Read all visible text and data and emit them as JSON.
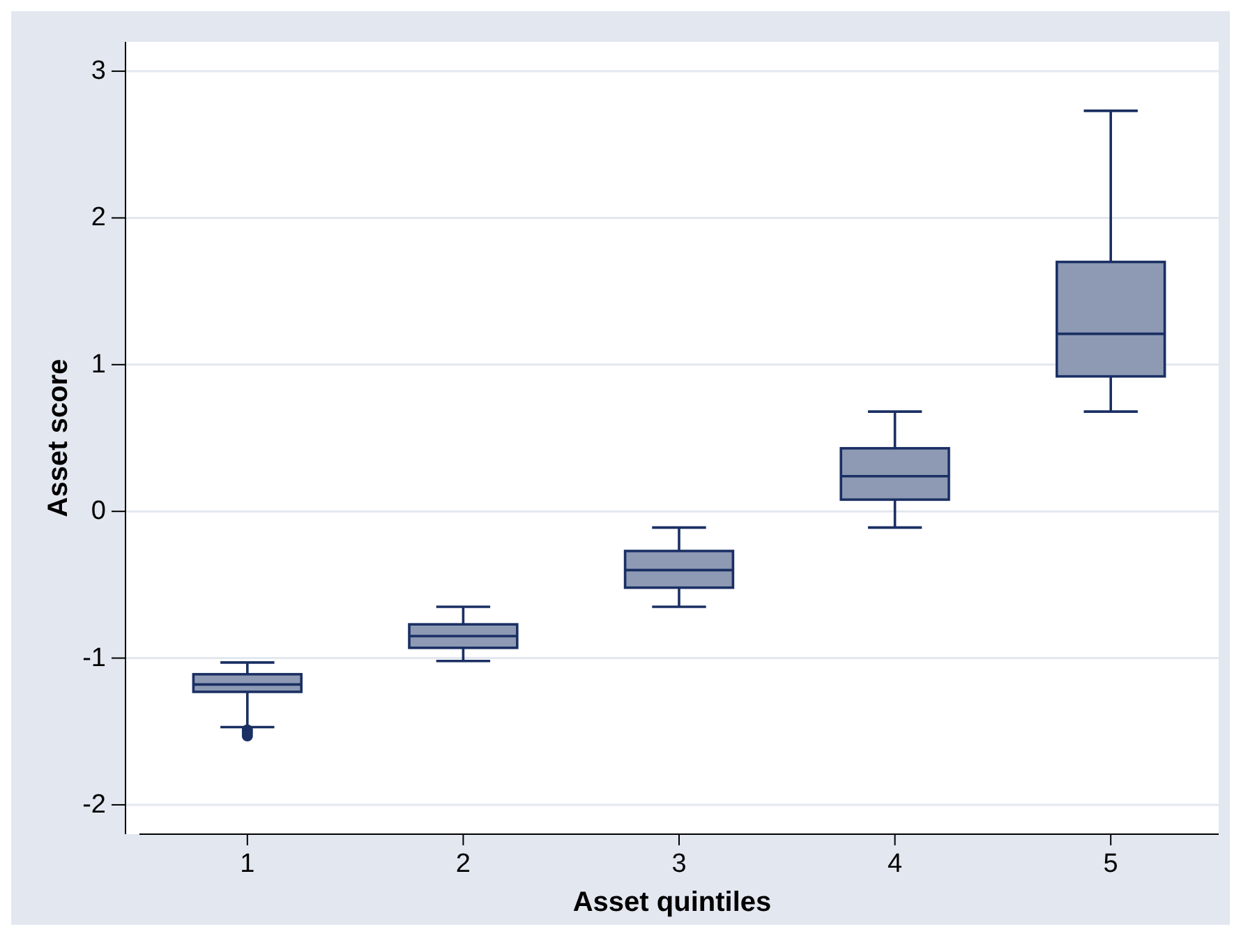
{
  "chart_data": {
    "type": "box",
    "xlabel": "Asset quintiles",
    "ylabel": "Asset score",
    "categories": [
      "1",
      "2",
      "3",
      "4",
      "5"
    ],
    "boxes": [
      {
        "low": -1.47,
        "q1": -1.23,
        "median": -1.18,
        "q3": -1.11,
        "high": -1.03,
        "outliers": [
          -1.49,
          -1.51,
          -1.53
        ]
      },
      {
        "low": -1.02,
        "q1": -0.93,
        "median": -0.85,
        "q3": -0.77,
        "high": -0.65
      },
      {
        "low": -0.65,
        "q1": -0.52,
        "median": -0.4,
        "q3": -0.27,
        "high": -0.11
      },
      {
        "low": -0.11,
        "q1": 0.08,
        "median": 0.24,
        "q3": 0.43,
        "high": 0.68
      },
      {
        "low": 0.68,
        "q1": 0.92,
        "median": 1.21,
        "q3": 1.7,
        "high": 2.73
      }
    ],
    "color": "#8e9ab4",
    "ylim": [
      -2.2,
      3.2
    ],
    "yticks": [
      -2,
      -1,
      0,
      1,
      2,
      3
    ],
    "grid": "y"
  }
}
